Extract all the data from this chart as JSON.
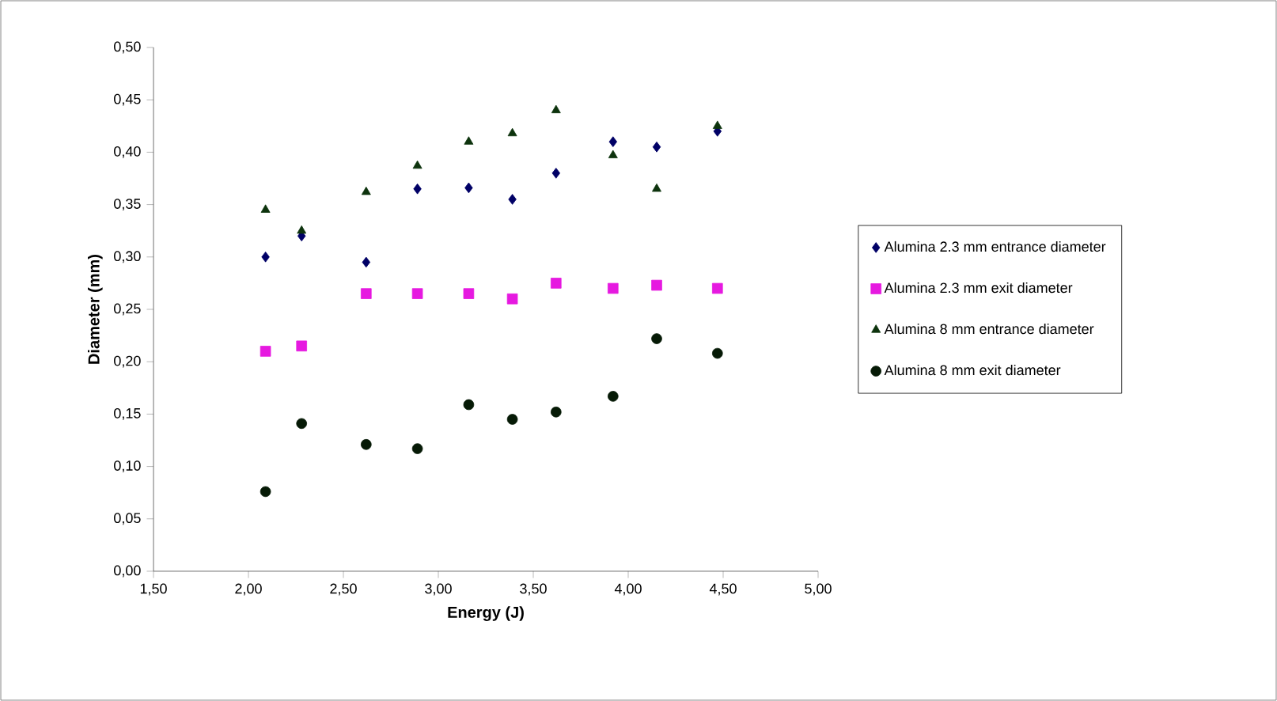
{
  "chart_data": {
    "type": "scatter",
    "xlabel": "Energy (J)",
    "ylabel": "Diameter (mm)",
    "x": [
      2.09,
      2.28,
      2.62,
      2.89,
      3.16,
      3.39,
      3.62,
      3.92,
      4.15,
      4.47
    ],
    "series": [
      {
        "name": "Alumina 2.3 mm entrance diameter",
        "color": "#000066",
        "marker": "diamond",
        "values": [
          0.3,
          0.32,
          0.295,
          0.365,
          0.366,
          0.355,
          0.38,
          0.41,
          0.405,
          0.42
        ]
      },
      {
        "name": "Alumina 2.3 mm exit diameter",
        "color": "#e619e0",
        "marker": "square",
        "values": [
          0.21,
          0.215,
          0.265,
          0.265,
          0.265,
          0.26,
          0.275,
          0.27,
          0.273,
          0.27
        ]
      },
      {
        "name": "Alumina 8 mm entrance diameter",
        "color": "#0d330d",
        "marker": "triangle",
        "values": [
          0.345,
          0.325,
          0.362,
          0.387,
          0.41,
          0.418,
          0.44,
          0.397,
          0.365,
          0.425
        ]
      },
      {
        "name": "Alumina 8 mm exit diameter",
        "color": "#061a06",
        "marker": "circle",
        "values": [
          0.076,
          0.141,
          0.121,
          0.117,
          0.159,
          0.145,
          0.152,
          0.167,
          0.222,
          0.208
        ]
      }
    ],
    "xlim": [
      1.5,
      5.0
    ],
    "xticks": [
      {
        "value": 1.5,
        "label": "1,50"
      },
      {
        "value": 2.0,
        "label": "2,00"
      },
      {
        "value": 2.5,
        "label": "2,50"
      },
      {
        "value": 3.0,
        "label": "3,00"
      },
      {
        "value": 3.5,
        "label": "3,50"
      },
      {
        "value": 4.0,
        "label": "4,00"
      },
      {
        "value": 4.5,
        "label": "4,50"
      },
      {
        "value": 5.0,
        "label": "5,00"
      }
    ],
    "ylim": [
      0,
      0.5
    ],
    "yticks": [
      {
        "value": 0,
        "label": "0,00"
      },
      {
        "value": 0.05,
        "label": "0,05"
      },
      {
        "value": 0.1,
        "label": "0,10"
      },
      {
        "value": 0.15,
        "label": "0,15"
      },
      {
        "value": 0.2,
        "label": "0,20"
      },
      {
        "value": 0.25,
        "label": "0,25"
      },
      {
        "value": 0.3,
        "label": "0,30"
      },
      {
        "value": 0.35,
        "label": "0,35"
      },
      {
        "value": 0.4,
        "label": "0,40"
      },
      {
        "value": 0.45,
        "label": "0,45"
      },
      {
        "value": 0.5,
        "label": "0,50"
      }
    ],
    "grid": false,
    "legend": "right"
  }
}
